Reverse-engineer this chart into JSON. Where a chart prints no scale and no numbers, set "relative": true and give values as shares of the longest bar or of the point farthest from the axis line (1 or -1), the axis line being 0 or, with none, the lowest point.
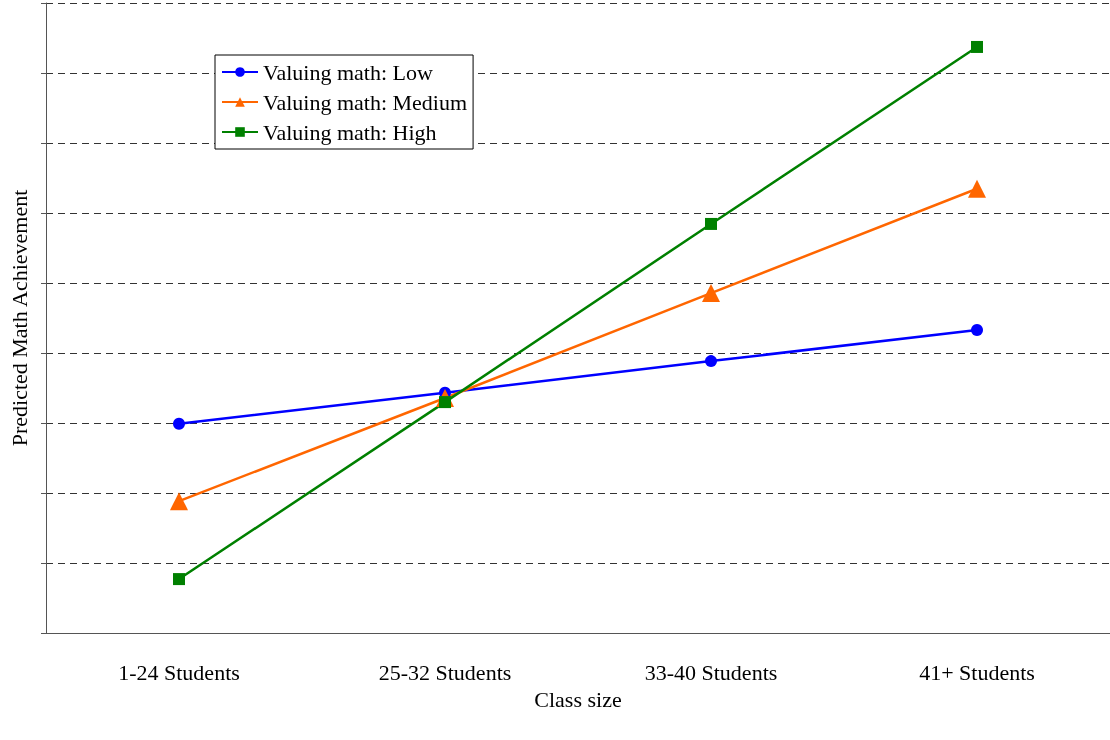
{
  "chart_data": {
    "type": "line",
    "relative": true,
    "xlabel": "Class size",
    "ylabel": "Predicted Math Achievement",
    "categories": [
      "1-24 Students",
      "25-32 Students",
      "33-40 Students",
      "41+ Students"
    ],
    "series": [
      {
        "name": "Valuing math: Low",
        "color": "#0000ff",
        "marker": "circle",
        "values": [
          0.357,
          0.41,
          0.464,
          0.517
        ]
      },
      {
        "name": "Valuing math: Medium",
        "color": "#ff6600",
        "marker": "triangle",
        "values": [
          0.225,
          0.401,
          0.58,
          0.758
        ]
      },
      {
        "name": "Valuing math: High",
        "color": "#008000",
        "marker": "square",
        "values": [
          0.092,
          0.394,
          0.698,
          1
        ]
      }
    ],
    "grid": "y",
    "legend": "top left",
    "line_style": "solid"
  }
}
